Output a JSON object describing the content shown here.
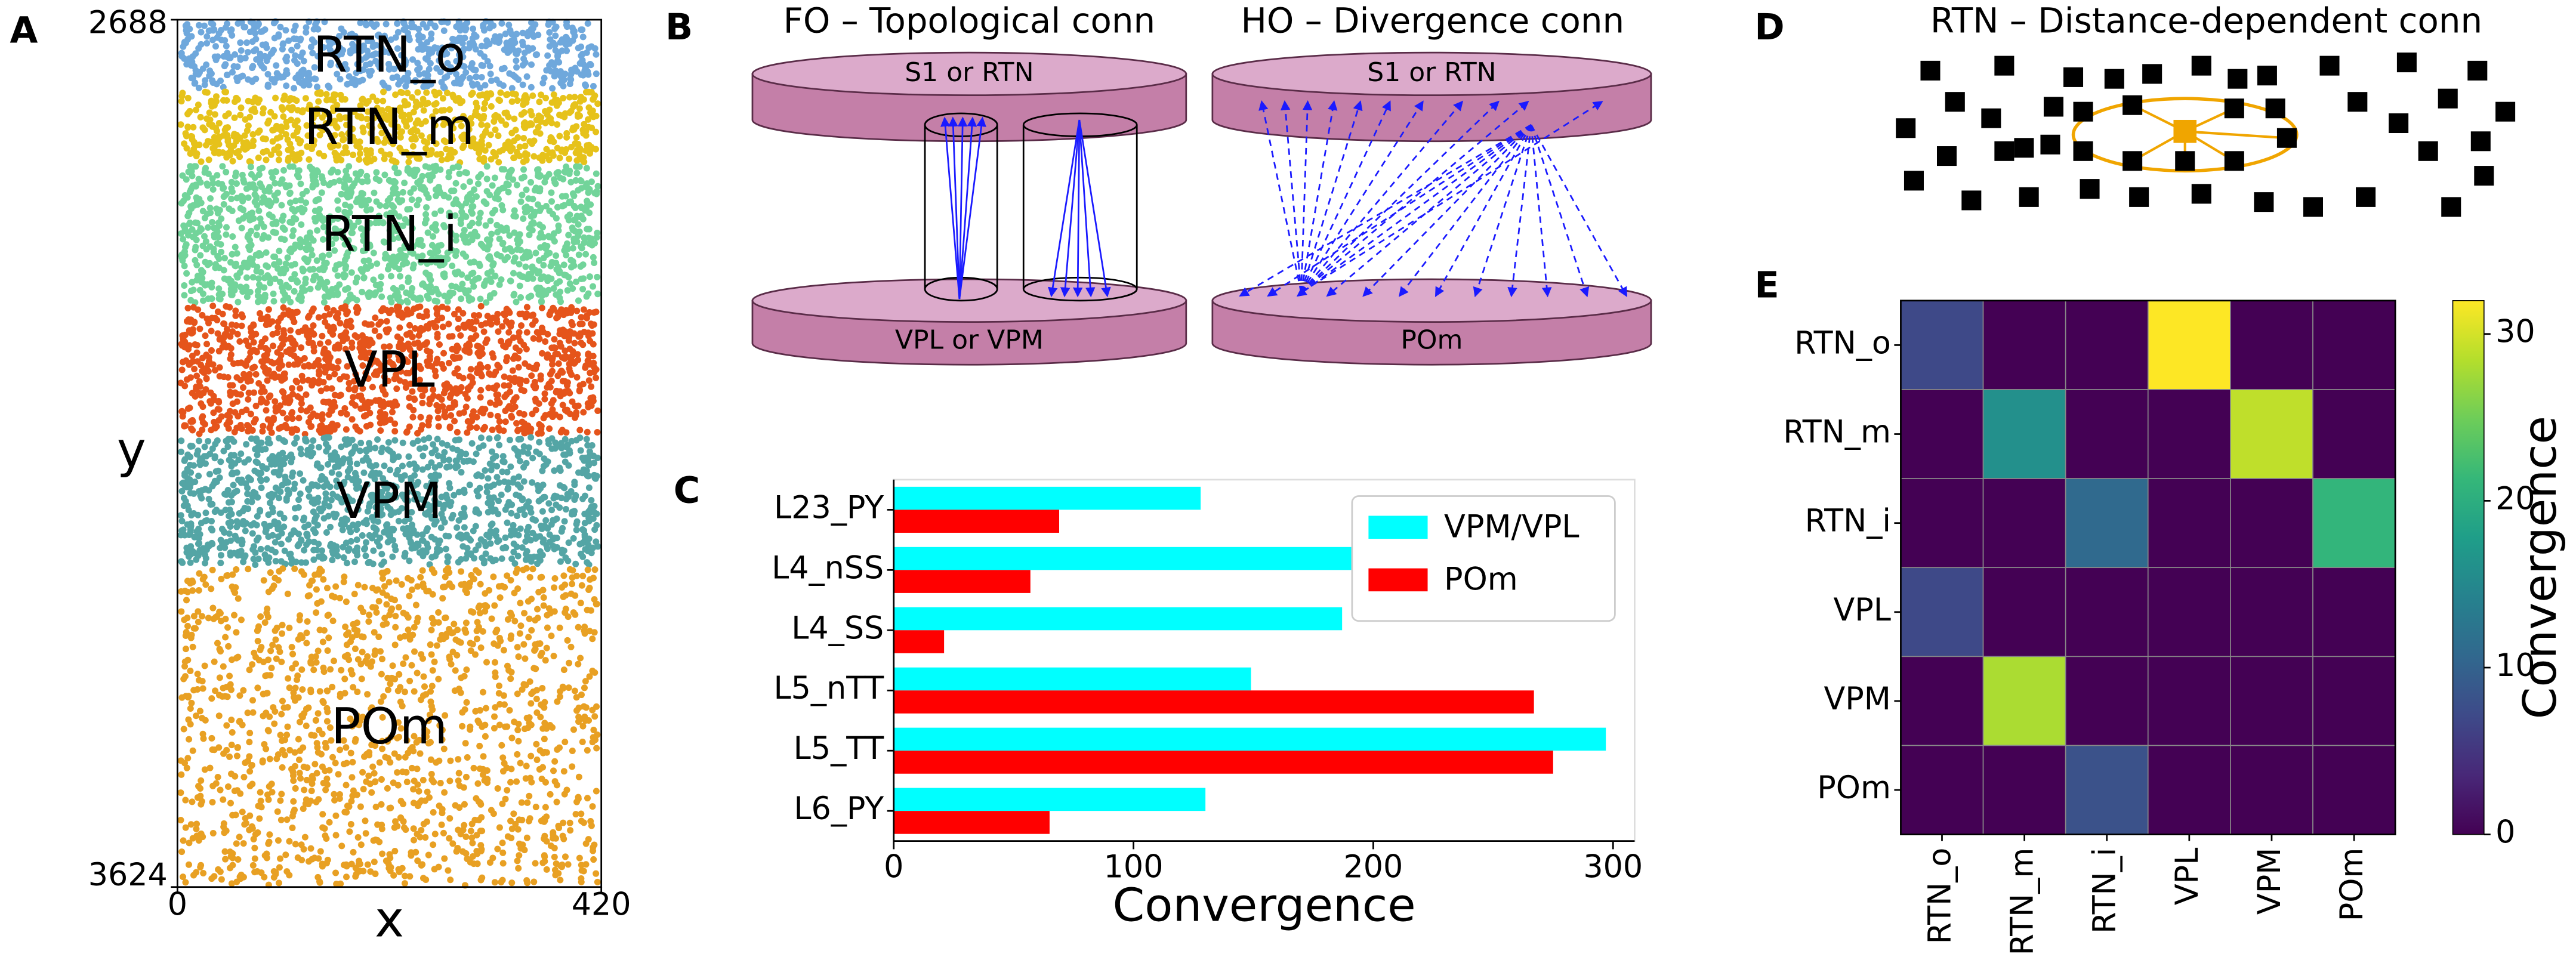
{
  "chart_data": [
    {
      "type": "layers",
      "panel_label": "A",
      "categories": [
        "RTN_o",
        "RTN_m",
        "RTN_i",
        "VPL",
        "VPM",
        "POm"
      ],
      "y_ranges": [
        [
          2688,
          2764
        ],
        [
          2764,
          2844
        ],
        [
          2844,
          2995
        ],
        [
          2995,
          3137
        ],
        [
          3137,
          3278
        ],
        [
          3278,
          3624
        ]
      ],
      "colors": [
        "#6fa8dc",
        "#e6c21a",
        "#72d49a",
        "#e5541b",
        "#54a5a5",
        "#e8a023"
      ],
      "xlim": [
        0,
        420
      ],
      "ylim": [
        2688,
        3624
      ],
      "y_inverted": true,
      "xticks": [
        0,
        420
      ],
      "yticks": [
        2688,
        3624
      ],
      "xlabel": "x",
      "ylabel": "y"
    },
    {
      "type": "barh",
      "panel_label": "C",
      "categories": [
        "L23_PY",
        "L4_nSS",
        "L4_SS",
        "L5_nTT",
        "L5_TT",
        "L6_PY"
      ],
      "series": [
        {
          "name": "VPM/VPL",
          "color": "#00ffff",
          "values": [
            128,
            197,
            187,
            149,
            297,
            130
          ]
        },
        {
          "name": "POm",
          "color": "#ff0000",
          "values": [
            69,
            57,
            21,
            267,
            275,
            65
          ]
        }
      ],
      "xlim": [
        0,
        309
      ],
      "xticks": [
        0,
        100,
        200,
        300
      ],
      "xlabel": "Convergence",
      "legend": "upper right"
    },
    {
      "type": "heatmap",
      "panel_label": "E",
      "rows": [
        "RTN_o",
        "RTN_m",
        "RTN_i",
        "VPL",
        "VPM",
        "POm"
      ],
      "columns": [
        "RTN_o",
        "RTN_m",
        "RTN_i",
        "VPL",
        "VPM",
        "POm"
      ],
      "values": [
        [
          7,
          0,
          0,
          32,
          0,
          0
        ],
        [
          0,
          16,
          0,
          0,
          29,
          0
        ],
        [
          0,
          0,
          11,
          0,
          0,
          21
        ],
        [
          7,
          0,
          0,
          0,
          0,
          0
        ],
        [
          0,
          28,
          0,
          0,
          0,
          0
        ],
        [
          0,
          0,
          8,
          0,
          0,
          0
        ]
      ],
      "colormap": "viridis",
      "clim": [
        0,
        32
      ],
      "cticks": [
        0,
        10,
        20,
        30
      ],
      "colorbar_label": "Convergence"
    }
  ],
  "diagram_b": {
    "panel_label": "B",
    "title_left": "FO – Topological conn",
    "title_right": "HO – Divergence conn",
    "top_left": "S1 or RTN",
    "bottom_left": "VPL or VPM",
    "top_right": "S1 or RTN",
    "bottom_right": "POm"
  },
  "diagram_d": {
    "panel_label": "D",
    "title": "RTN – Distance-dependent conn"
  }
}
